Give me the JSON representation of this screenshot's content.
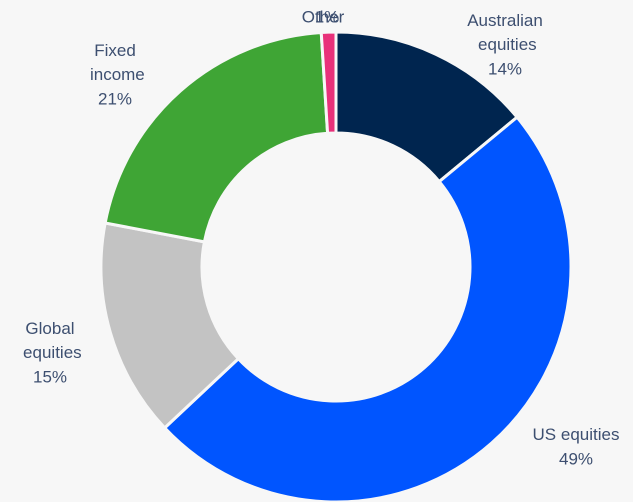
{
  "chart_data": {
    "type": "donut",
    "categories": [
      "Australian equities",
      "US equities",
      "Global equities",
      "Fixed income",
      "Other"
    ],
    "values": [
      14,
      49,
      15,
      21,
      1
    ],
    "value_labels": [
      "14%",
      "49%",
      "15%",
      "21%",
      "1%"
    ],
    "colors": [
      "#00254f",
      "#0055ff",
      "#c3c3c3",
      "#3fa535",
      "#e8317a"
    ]
  }
}
